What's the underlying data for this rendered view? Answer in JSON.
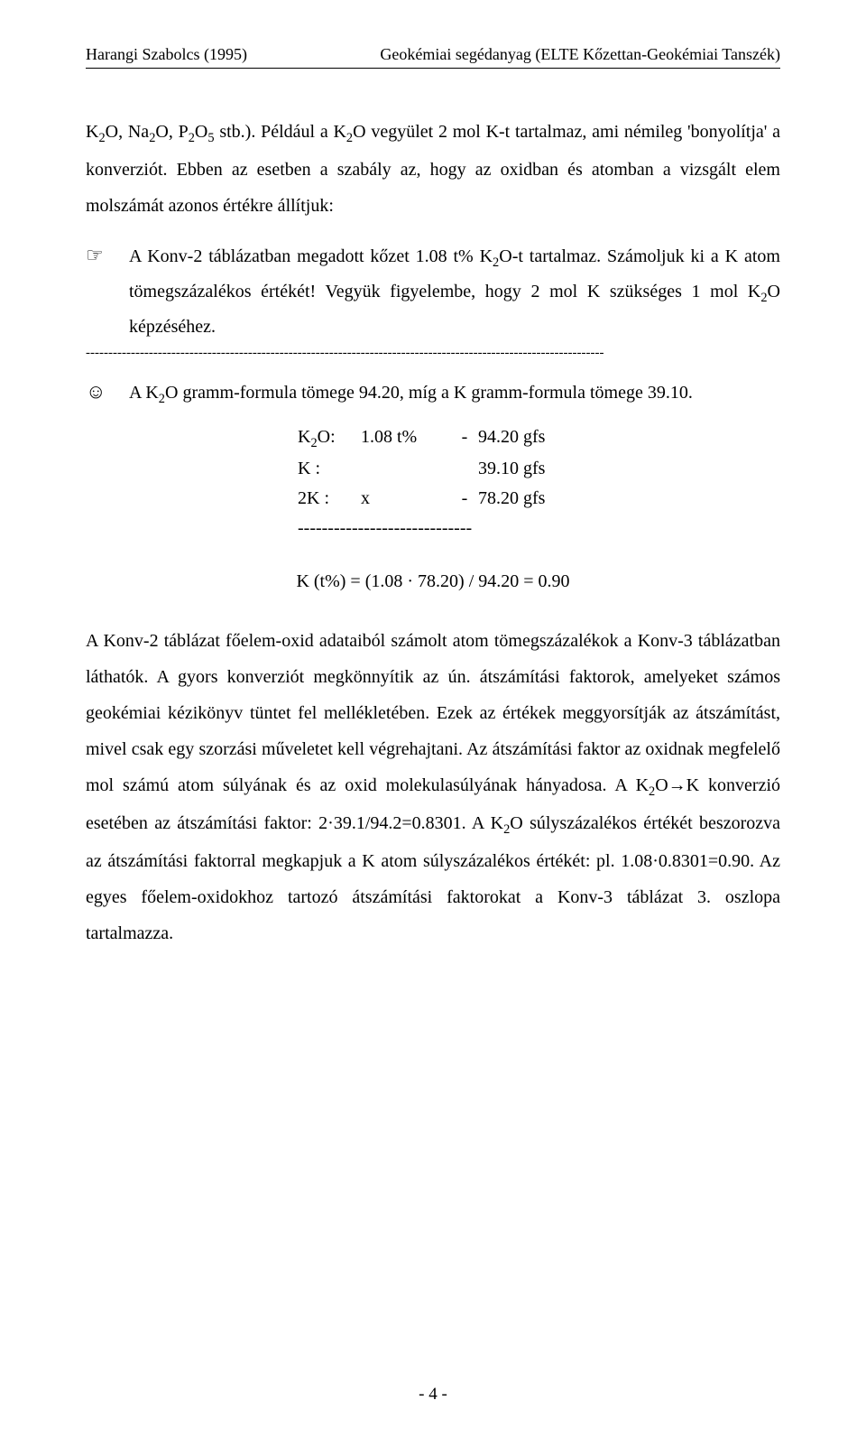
{
  "header": {
    "left": "Harangi Szabolcs (1995)",
    "right": "Geokémiai segédanyag (ELTE Kőzettan-Geokémiai Tanszék)"
  },
  "intro": {
    "p1_html": "K<sub>2</sub>O, Na<sub>2</sub>O, P<sub>2</sub>O<sub>5</sub> stb.). Például a K<sub>2</sub>O vegyület 2 mol K-t tartalmaz, ami némileg 'bonyolítja' a konverziót. Ebben az esetben a szabály az, hogy az oxidban és atomban a vizsgált elem molszámát azonos értékre állítjuk:"
  },
  "task": {
    "icon": "☞",
    "text_html": "A Konv-2 táblázatban megadott kőzet 1.08 t% K<sub>2</sub>O-t tartalmaz. Számoljuk ki a K atom tömegszázalékos értékét! Vegyük figyelembe, hogy 2 mol K szükséges 1 mol K<sub>2</sub>O képzéséhez."
  },
  "answer": {
    "icon": "☺",
    "text_html": "A K<sub>2</sub>O gramm-formula tömege 94.20, míg a K gramm-formula tömege 39.10."
  },
  "calc": {
    "rows": [
      {
        "label_html": "K<sub>2</sub>O:",
        "pct": "1.08 t%",
        "dash": "-",
        "val": "94.20 gfs"
      },
      {
        "label_html": "K   :",
        "pct": "",
        "dash": "",
        "val": "39.10 gfs"
      },
      {
        "label_html": "2K :",
        "pct": "x",
        "dash": "-",
        "val": "78.20 gfs"
      }
    ],
    "divider": "-----------------------------",
    "result": "K (t%) = (1.08 · 78.20) / 94.20 = 0.90"
  },
  "para2_html": "A Konv-2 táblázat főelem-oxid adataiból számolt atom tömegszázalékok a Konv-3 táblázatban láthatók. A gyors konverziót megkönnyítik az ún. átszámítási faktorok, amelyeket számos geokémiai kézikönyv tüntet fel mellékletében. Ezek az értékek meggyorsítják az átszámítást, mivel csak egy szorzási műveletet kell végrehajtani. Az átszámítási faktor az oxidnak megfelelő mol számú atom súlyának és az oxid molekulasúlyának hányadosa. A K<sub>2</sub>O→K konverzió esetében az átszámítási faktor: 2·39.1/94.2=0.8301. A K<sub>2</sub>O súlyszázalékos értékét beszorozva az átszámítási faktorral megkapjuk a K atom súlyszázalékos értékét: pl. 1.08·0.8301=0.90. Az egyes főelem-oxidokhoz tartozó átszámítási faktorokat a Konv-3 táblázat 3. oszlopa tartalmazza.",
  "dashline": "-------------------------------------------------------------------------------------------------------------------",
  "footer": "- 4 -"
}
